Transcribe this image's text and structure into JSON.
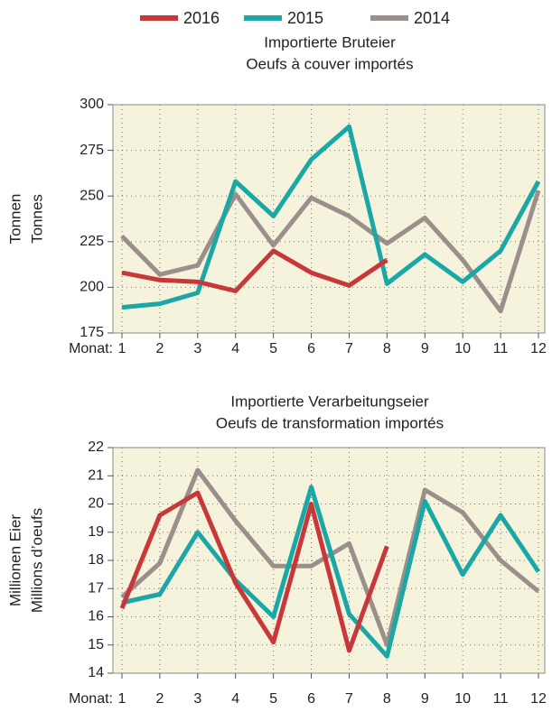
{
  "chart_data": [
    {
      "type": "line",
      "title": "Importierte Bruteier",
      "subtitle": "Oeufs à couver importés",
      "ylabel": [
        "Tonnen",
        "Tonnes"
      ],
      "xlabel": "Monat:",
      "categories": [
        "1",
        "2",
        "3",
        "4",
        "5",
        "6",
        "7",
        "8",
        "9",
        "10",
        "11",
        "12"
      ],
      "ylim": [
        175,
        300
      ],
      "yticks": [
        175,
        200,
        225,
        250,
        275,
        300
      ],
      "grid": true,
      "series": [
        {
          "name": "2016",
          "color": "#c8383a",
          "values": [
            208,
            204,
            203,
            198,
            220,
            208,
            201,
            215,
            null,
            null,
            null,
            null
          ]
        },
        {
          "name": "2015",
          "color": "#1aa7a6",
          "values": [
            189,
            191,
            197,
            258,
            239,
            270,
            288,
            202,
            218,
            203,
            220,
            258
          ]
        },
        {
          "name": "2014",
          "color": "#9a8f8a",
          "values": [
            228,
            207,
            212,
            251,
            223,
            249,
            239,
            224,
            238,
            215,
            187,
            253
          ]
        }
      ]
    },
    {
      "type": "line",
      "title": "Importierte Verarbeitungseier",
      "subtitle": "Oeufs de transformation importés",
      "ylabel": [
        "Millionen Eier",
        "Millions d’oeufs"
      ],
      "xlabel": "Monat:",
      "categories": [
        "1",
        "2",
        "3",
        "4",
        "5",
        "6",
        "7",
        "8",
        "9",
        "10",
        "11",
        "12"
      ],
      "ylim": [
        14,
        22
      ],
      "yticks": [
        14,
        15,
        16,
        17,
        18,
        19,
        20,
        21,
        22
      ],
      "grid": true,
      "series": [
        {
          "name": "2016",
          "color": "#c8383a",
          "values": [
            16.3,
            19.6,
            20.4,
            17.2,
            15.1,
            20.0,
            14.8,
            18.5,
            null,
            null,
            null,
            null
          ]
        },
        {
          "name": "2015",
          "color": "#1aa7a6",
          "values": [
            16.5,
            16.8,
            19.0,
            17.3,
            16.0,
            20.6,
            16.1,
            14.6,
            20.1,
            17.5,
            19.6,
            17.6
          ]
        },
        {
          "name": "2014",
          "color": "#9a8f8a",
          "values": [
            16.7,
            17.9,
            21.2,
            19.4,
            17.8,
            17.8,
            18.6,
            15.0,
            20.5,
            19.7,
            18.0,
            16.9
          ]
        }
      ]
    }
  ]
}
